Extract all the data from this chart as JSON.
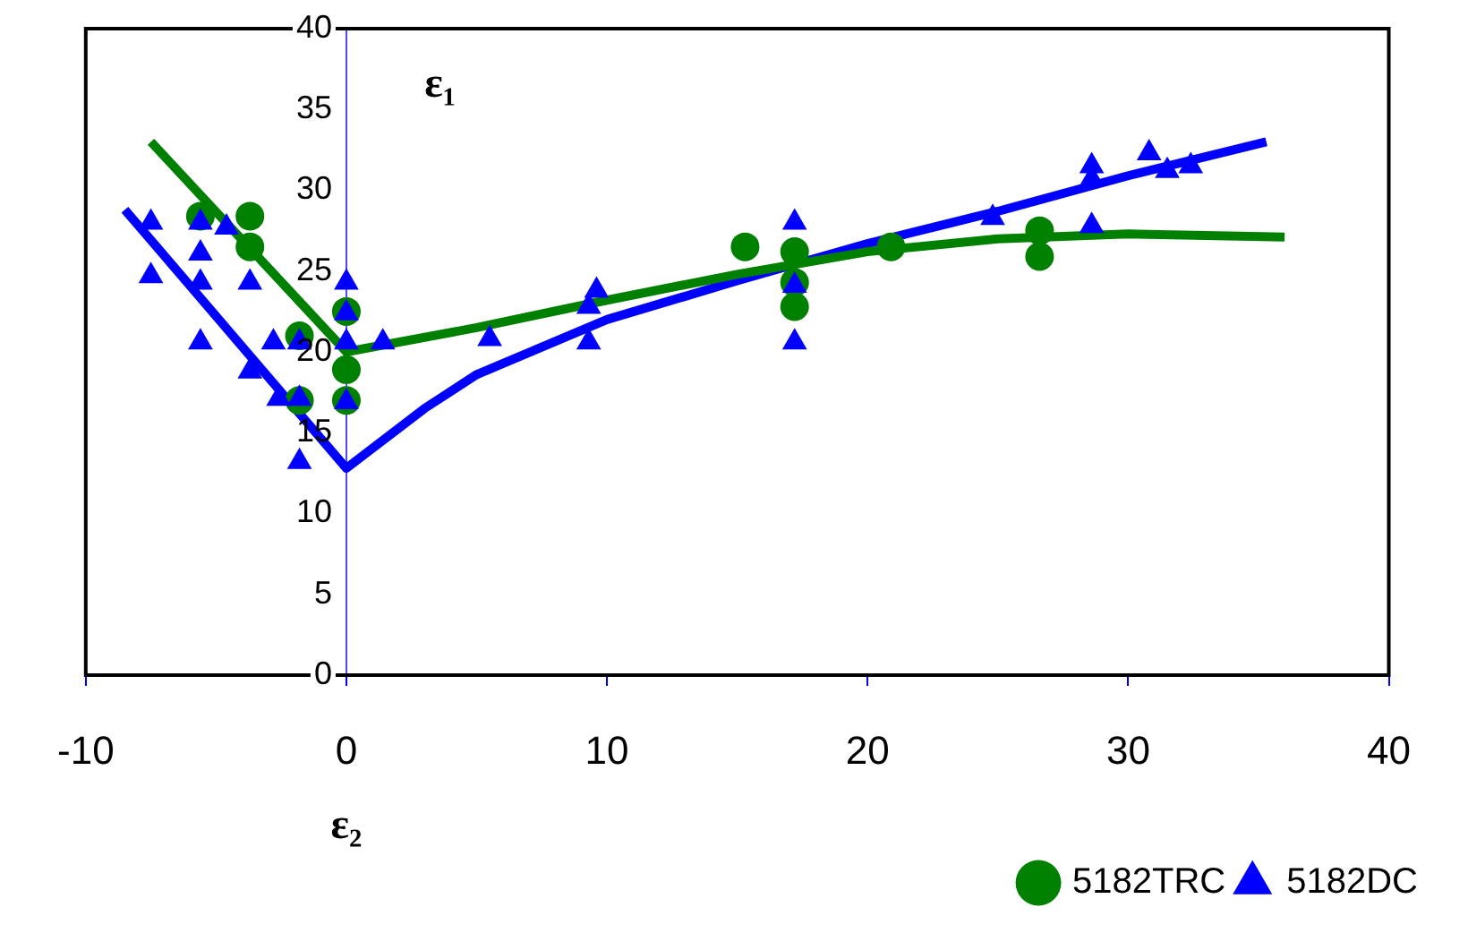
{
  "chart_data": {
    "type": "scatter",
    "xlabel": "ε₂",
    "ylabel": "ε₁",
    "xlim": [
      -10,
      40
    ],
    "ylim": [
      0,
      40
    ],
    "xticks": [
      -10,
      0,
      10,
      20,
      30,
      40
    ],
    "yticks": [
      0,
      5,
      10,
      15,
      20,
      25,
      30,
      35,
      40
    ],
    "grid": false,
    "legend": "bottom right",
    "series": [
      {
        "name": "5182TRC",
        "type": "scatter",
        "marker": "circle",
        "color": "#008000",
        "x": [
          -5.6,
          -3.7,
          -3.7,
          -1.8,
          -1.8,
          0,
          0,
          0,
          15.3,
          17.2,
          17.2,
          17.2,
          20.9,
          26.6,
          26.6
        ],
        "values": [
          28.4,
          28.4,
          26.5,
          21.0,
          17.0,
          22.5,
          18.9,
          17.0,
          26.5,
          26.2,
          24.3,
          22.8,
          26.5,
          27.5,
          25.9
        ]
      },
      {
        "name": "5182DC",
        "type": "scatter",
        "marker": "triangle",
        "color": "#0000ff",
        "x": [
          -7.5,
          -7.5,
          -5.6,
          -5.6,
          -5.6,
          -5.6,
          -4.6,
          -3.7,
          -3.7,
          -2.8,
          -2.6,
          -1.8,
          -1.8,
          -1.8,
          0,
          0,
          0,
          0,
          1.4,
          5.5,
          9.3,
          9.6,
          9.3,
          17.2,
          17.2,
          17.2,
          24.8,
          28.6,
          28.6,
          28.6,
          30.8,
          31.5,
          32.4
        ],
        "values": [
          28.0,
          24.7,
          28.0,
          26.1,
          24.3,
          20.6,
          27.7,
          24.3,
          18.8,
          20.6,
          17.1,
          20.6,
          17.1,
          13.2,
          24.3,
          22.4,
          20.6,
          16.9,
          20.6,
          20.8,
          22.8,
          23.8,
          20.6,
          28.0,
          24.1,
          20.6,
          28.3,
          31.5,
          30.7,
          27.8,
          32.3,
          31.2,
          31.5
        ]
      },
      {
        "type": "line",
        "marker": "none",
        "line_style": "solid",
        "color": "#008000",
        "x": [
          -7.5,
          0,
          5,
          10,
          15,
          20,
          25,
          30,
          36
        ],
        "values": [
          33.0,
          20.0,
          21.5,
          23.2,
          24.8,
          26.2,
          27.0,
          27.3,
          27.1
        ]
      },
      {
        "type": "line",
        "marker": "none",
        "line_style": "solid",
        "color": "#0000ff",
        "x": [
          -8.5,
          0,
          3,
          5,
          10,
          15,
          20,
          25,
          30,
          35.3
        ],
        "values": [
          28.8,
          12.8,
          16.5,
          18.6,
          22.0,
          24.4,
          26.7,
          28.7,
          30.9,
          33.0
        ]
      }
    ]
  }
}
